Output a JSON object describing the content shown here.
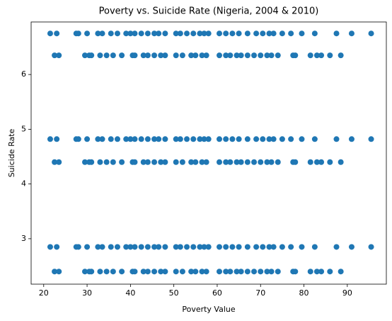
{
  "chart_data": {
    "type": "scatter",
    "title": "Poverty vs. Suicide Rate (Nigeria, 2004 & 2010)",
    "x_label": "Poverty Value",
    "y_label": "Suicide Rate",
    "xlim": [
      17.1,
      99
    ],
    "ylim": [
      2.17,
      6.96
    ],
    "xticks": [
      20,
      30,
      40,
      50,
      60,
      70,
      80,
      90
    ],
    "yticks": [
      3,
      4,
      5,
      6
    ],
    "series": [
      {
        "color": "#1f77b4",
        "x": [
          21.5,
          23,
          27.5,
          28,
          30,
          32.5,
          33.5,
          35.5,
          37,
          39,
          40,
          41,
          42.5,
          44,
          45.5,
          46.5,
          48,
          50.5,
          51.5,
          53,
          54.5,
          56,
          57,
          58,
          60.5,
          62,
          63.5,
          65,
          67,
          69,
          70.5,
          72,
          73,
          75,
          77,
          79.5,
          82.5,
          87.5,
          91,
          95.5
        ],
        "y": [
          6.75,
          6.75,
          6.75,
          6.75,
          6.75,
          6.75,
          6.75,
          6.75,
          6.75,
          6.75,
          6.75,
          6.75,
          6.75,
          6.75,
          6.75,
          6.75,
          6.75,
          6.75,
          6.75,
          6.75,
          6.75,
          6.75,
          6.75,
          6.75,
          6.75,
          6.75,
          6.75,
          6.75,
          6.75,
          6.75,
          6.75,
          6.75,
          6.75,
          6.75,
          6.75,
          6.75,
          6.75,
          6.75,
          6.75,
          6.75
        ]
      },
      {
        "color": "#1f77b4",
        "x": [
          21.5,
          23,
          27.5,
          28,
          30,
          32.5,
          33.5,
          35.5,
          37,
          39,
          40,
          41,
          42.5,
          44,
          45.5,
          46.5,
          48,
          50.5,
          51.5,
          53,
          54.5,
          56,
          57,
          58,
          60.5,
          62,
          63.5,
          65,
          67,
          69,
          70.5,
          72,
          73,
          75,
          77,
          79.5,
          82.5,
          87.5,
          91,
          95.5
        ],
        "y": [
          4.82,
          4.82,
          4.82,
          4.82,
          4.82,
          4.82,
          4.82,
          4.82,
          4.82,
          4.82,
          4.82,
          4.82,
          4.82,
          4.82,
          4.82,
          4.82,
          4.82,
          4.82,
          4.82,
          4.82,
          4.82,
          4.82,
          4.82,
          4.82,
          4.82,
          4.82,
          4.82,
          4.82,
          4.82,
          4.82,
          4.82,
          4.82,
          4.82,
          4.82,
          4.82,
          4.82,
          4.82,
          4.82,
          4.82,
          4.82
        ]
      },
      {
        "color": "#1f77b4",
        "x": [
          21.5,
          23,
          27.5,
          28,
          30,
          32.5,
          33.5,
          35.5,
          37,
          39,
          40,
          41,
          42.5,
          44,
          45.5,
          46.5,
          48,
          50.5,
          51.5,
          53,
          54.5,
          56,
          57,
          58,
          60.5,
          62,
          63.5,
          65,
          67,
          69,
          70.5,
          72,
          73,
          75,
          77,
          79.5,
          82.5,
          87.5,
          91,
          95.5
        ],
        "y": [
          2.85,
          2.85,
          2.85,
          2.85,
          2.85,
          2.85,
          2.85,
          2.85,
          2.85,
          2.85,
          2.85,
          2.85,
          2.85,
          2.85,
          2.85,
          2.85,
          2.85,
          2.85,
          2.85,
          2.85,
          2.85,
          2.85,
          2.85,
          2.85,
          2.85,
          2.85,
          2.85,
          2.85,
          2.85,
          2.85,
          2.85,
          2.85,
          2.85,
          2.85,
          2.85,
          2.85,
          2.85,
          2.85,
          2.85,
          2.85
        ]
      },
      {
        "color": "#1f77b4",
        "x": [
          22.5,
          23.5,
          29.5,
          30.5,
          31,
          33,
          34.5,
          36,
          38,
          40.5,
          41,
          43,
          44,
          45.5,
          47,
          48,
          50.5,
          52,
          54,
          55,
          56.5,
          57.5,
          60.5,
          62,
          63,
          64.5,
          65.5,
          67,
          68.5,
          70,
          71.5,
          72.5,
          74,
          77.5,
          78,
          81.5,
          83,
          84,
          86,
          88.5
        ],
        "y": [
          6.35,
          6.35,
          6.35,
          6.35,
          6.35,
          6.35,
          6.35,
          6.35,
          6.35,
          6.35,
          6.35,
          6.35,
          6.35,
          6.35,
          6.35,
          6.35,
          6.35,
          6.35,
          6.35,
          6.35,
          6.35,
          6.35,
          6.35,
          6.35,
          6.35,
          6.35,
          6.35,
          6.35,
          6.35,
          6.35,
          6.35,
          6.35,
          6.35,
          6.35,
          6.35,
          6.35,
          6.35,
          6.35,
          6.35,
          6.35
        ]
      },
      {
        "color": "#1f77b4",
        "x": [
          22.5,
          23.5,
          29.5,
          30.5,
          31,
          33,
          34.5,
          36,
          38,
          40.5,
          41,
          43,
          44,
          45.5,
          47,
          48,
          50.5,
          52,
          54,
          55,
          56.5,
          57.5,
          60.5,
          62,
          63,
          64.5,
          65.5,
          67,
          68.5,
          70,
          71.5,
          72.5,
          74,
          77.5,
          78,
          81.5,
          83,
          84,
          86,
          88.5
        ],
        "y": [
          4.4,
          4.4,
          4.4,
          4.4,
          4.4,
          4.4,
          4.4,
          4.4,
          4.4,
          4.4,
          4.4,
          4.4,
          4.4,
          4.4,
          4.4,
          4.4,
          4.4,
          4.4,
          4.4,
          4.4,
          4.4,
          4.4,
          4.4,
          4.4,
          4.4,
          4.4,
          4.4,
          4.4,
          4.4,
          4.4,
          4.4,
          4.4,
          4.4,
          4.4,
          4.4,
          4.4,
          4.4,
          4.4,
          4.4,
          4.4
        ]
      },
      {
        "color": "#1f77b4",
        "x": [
          22.5,
          23.5,
          29.5,
          30.5,
          31,
          33,
          34.5,
          36,
          38,
          40.5,
          41,
          43,
          44,
          45.5,
          47,
          48,
          50.5,
          52,
          54,
          55,
          56.5,
          57.5,
          60.5,
          62,
          63,
          64.5,
          65.5,
          67,
          68.5,
          70,
          71.5,
          72.5,
          74,
          77.5,
          78,
          81.5,
          83,
          84,
          86,
          88.5
        ],
        "y": [
          2.4,
          2.4,
          2.4,
          2.4,
          2.4,
          2.4,
          2.4,
          2.4,
          2.4,
          2.4,
          2.4,
          2.4,
          2.4,
          2.4,
          2.4,
          2.4,
          2.4,
          2.4,
          2.4,
          2.4,
          2.4,
          2.4,
          2.4,
          2.4,
          2.4,
          2.4,
          2.4,
          2.4,
          2.4,
          2.4,
          2.4,
          2.4,
          2.4,
          2.4,
          2.4,
          2.4,
          2.4,
          2.4,
          2.4,
          2.4
        ]
      }
    ]
  }
}
